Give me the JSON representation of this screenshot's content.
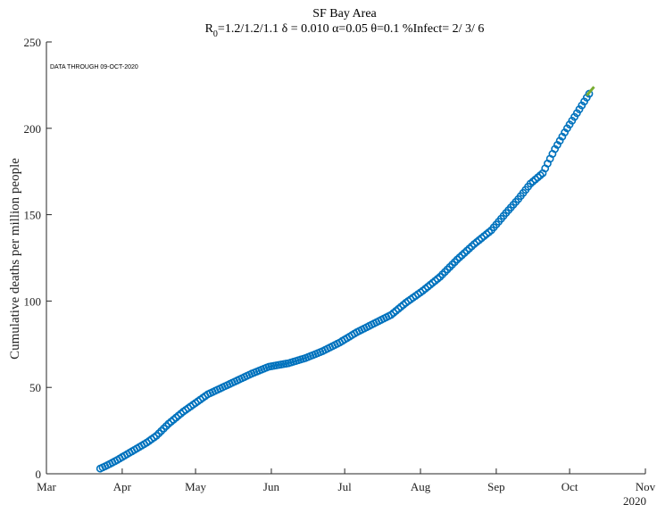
{
  "chart_data": {
    "type": "scatter",
    "title": "SF Bay Area",
    "subtitle": {
      "r_label": "R",
      "r_subscript": "0",
      "text": "=1.2/1.2/1.1  δ = 0.010  α=0.05  θ=0.1  %Infect= 2/ 3/ 6"
    },
    "annotation": "DATA THROUGH 09-OCT-2020",
    "ylabel": "Cumulative deaths per million people",
    "xlabel": "",
    "year_label": "2020",
    "xlim": [
      "2020-03-01",
      "2020-11-01"
    ],
    "ylim": [
      0,
      250
    ],
    "x_tick_labels": [
      "Mar",
      "Apr",
      "May",
      "Jun",
      "Jul",
      "Aug",
      "Sep",
      "Oct",
      "Nov"
    ],
    "x_tick_dates": [
      "2020-03-01",
      "2020-04-01",
      "2020-05-01",
      "2020-06-01",
      "2020-07-01",
      "2020-08-01",
      "2020-09-01",
      "2020-10-01",
      "2020-11-01"
    ],
    "y_ticks": [
      0,
      50,
      100,
      150,
      200,
      250
    ],
    "grid": false,
    "series": [
      {
        "color": "#0072bd",
        "marker": "circle",
        "points": [
          {
            "x": "2020-03-23",
            "y": 3
          },
          {
            "x": "2020-03-26",
            "y": 5
          },
          {
            "x": "2020-03-30",
            "y": 8
          },
          {
            "x": "2020-04-05",
            "y": 13
          },
          {
            "x": "2020-04-11",
            "y": 18
          },
          {
            "x": "2020-04-15",
            "y": 22
          },
          {
            "x": "2020-04-20",
            "y": 29
          },
          {
            "x": "2020-04-26",
            "y": 36
          },
          {
            "x": "2020-05-01",
            "y": 41
          },
          {
            "x": "2020-05-06",
            "y": 46
          },
          {
            "x": "2020-05-12",
            "y": 50
          },
          {
            "x": "2020-05-18",
            "y": 54
          },
          {
            "x": "2020-05-24",
            "y": 58
          },
          {
            "x": "2020-05-31",
            "y": 62
          },
          {
            "x": "2020-06-08",
            "y": 64
          },
          {
            "x": "2020-06-15",
            "y": 67
          },
          {
            "x": "2020-06-22",
            "y": 71
          },
          {
            "x": "2020-06-29",
            "y": 76
          },
          {
            "x": "2020-07-06",
            "y": 82
          },
          {
            "x": "2020-07-13",
            "y": 87
          },
          {
            "x": "2020-07-20",
            "y": 92
          },
          {
            "x": "2020-07-26",
            "y": 99
          },
          {
            "x": "2020-08-02",
            "y": 106
          },
          {
            "x": "2020-08-09",
            "y": 114
          },
          {
            "x": "2020-08-16",
            "y": 124
          },
          {
            "x": "2020-08-23",
            "y": 133
          },
          {
            "x": "2020-08-30",
            "y": 141
          },
          {
            "x": "2020-09-05",
            "y": 151
          },
          {
            "x": "2020-09-10",
            "y": 159
          },
          {
            "x": "2020-09-15",
            "y": 168
          },
          {
            "x": "2020-09-20",
            "y": 174
          },
          {
            "x": "2020-09-25",
            "y": 188
          },
          {
            "x": "2020-09-30",
            "y": 200
          },
          {
            "x": "2020-10-05",
            "y": 211
          },
          {
            "x": "2020-10-09",
            "y": 220
          }
        ]
      },
      {
        "color": "#77ac30",
        "marker": "line",
        "points": [
          {
            "x": "2020-10-08",
            "y": 219
          },
          {
            "x": "2020-10-11",
            "y": 224
          }
        ]
      }
    ]
  }
}
